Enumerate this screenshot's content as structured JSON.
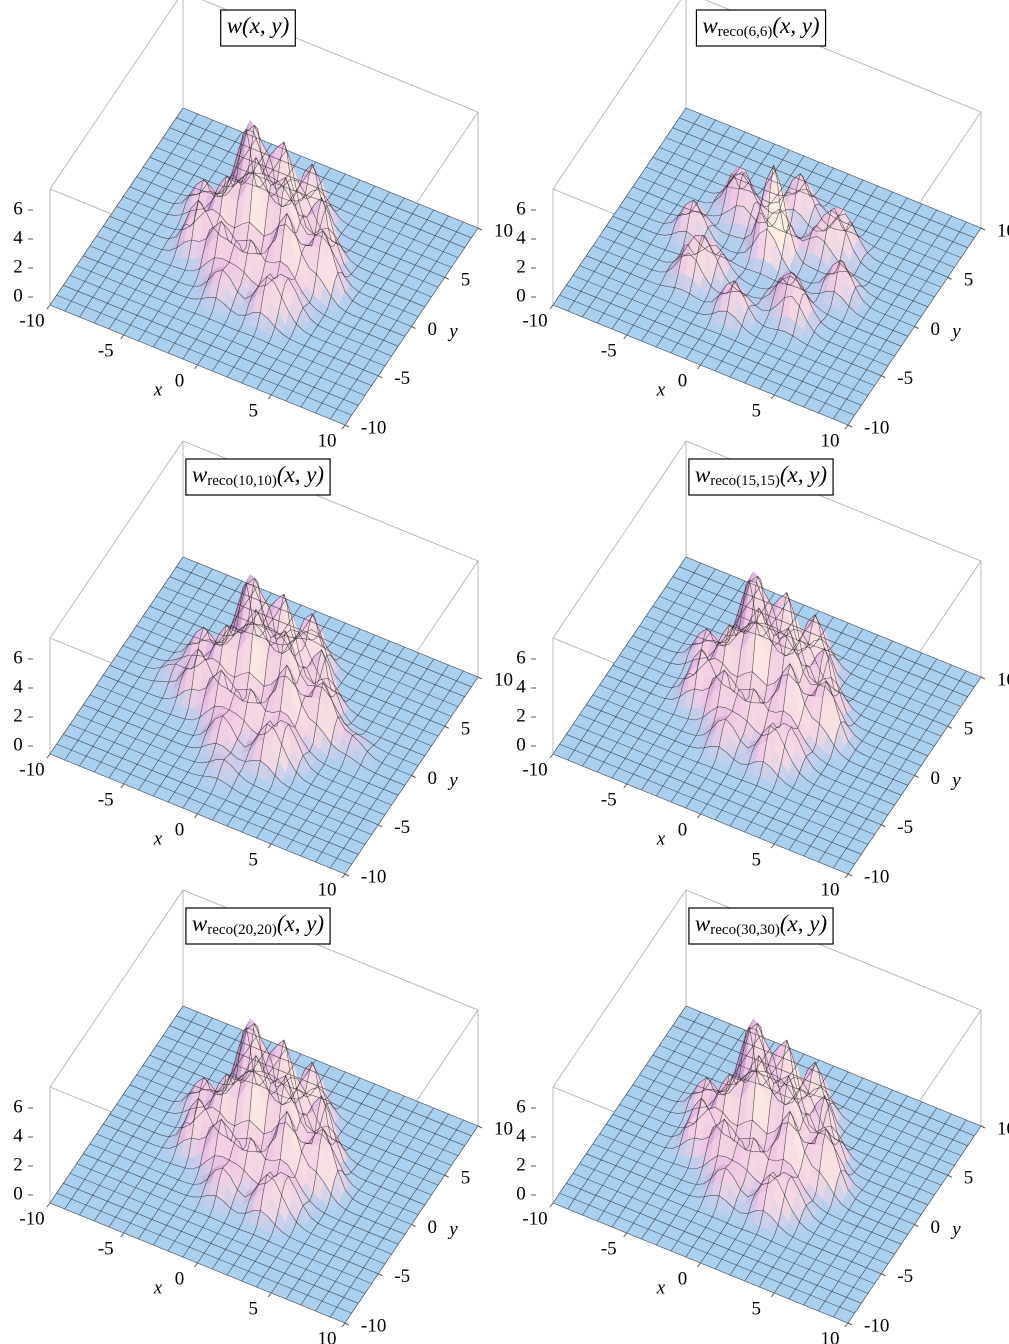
{
  "chart_data": [
    {
      "type": "surface",
      "title": {
        "main": "w",
        "sub": "",
        "args": "(x, y)"
      },
      "xlabel": "x",
      "ylabel": "y",
      "xlim": [
        -10,
        10
      ],
      "ylim": [
        -10,
        10
      ],
      "zlim": [
        0,
        8
      ],
      "xticks": [
        -10,
        -5,
        0,
        5,
        10
      ],
      "yticks": [
        -10,
        -5,
        0,
        5,
        10
      ],
      "zticks": [
        0,
        2,
        4,
        6
      ],
      "peaks": {
        "x": [
          -2,
          0,
          -1,
          1,
          2,
          -3,
          -4,
          -2,
          0,
          2,
          -1,
          3,
          4,
          -3,
          1,
          -5,
          3
        ],
        "y": [
          3,
          3,
          1,
          1,
          -1,
          1,
          -1,
          -2,
          -2,
          -4,
          -4,
          2,
          0,
          4,
          5,
          2,
          -3
        ],
        "z": [
          5.8,
          6.2,
          6,
          5.5,
          5,
          4,
          3.5,
          3.5,
          3,
          2.5,
          2,
          4.5,
          4,
          4.5,
          4,
          2.5,
          2
        ]
      }
    },
    {
      "type": "surface",
      "title": {
        "main": "w",
        "sub": "reco(6,6)",
        "args": "(x, y)"
      },
      "xlabel": "x",
      "ylabel": "y",
      "xlim": [
        -10,
        10
      ],
      "ylim": [
        -10,
        10
      ],
      "zlim": [
        0,
        8
      ],
      "xticks": [
        -10,
        -5,
        0,
        5,
        10
      ],
      "yticks": [
        -10,
        -5,
        0,
        5,
        10
      ],
      "zticks": [
        0,
        2,
        4,
        6
      ],
      "peaks": {
        "x": [
          0,
          5,
          3.5,
          0,
          -3.5,
          -5,
          -3.5,
          0,
          3.5,
          2.5,
          -2.5,
          -2.5,
          2.5
        ],
        "y": [
          1,
          0,
          3.5,
          5,
          3.5,
          0,
          -3.5,
          -5,
          -3.5,
          2.5,
          2.5,
          -2.5,
          -2.5
        ],
        "z": [
          6.3,
          2.5,
          2.8,
          3,
          2.8,
          2.5,
          2.6,
          2.4,
          2.5,
          2,
          2,
          2,
          2
        ]
      }
    },
    {
      "type": "surface",
      "title": {
        "main": "w",
        "sub": "reco(10,10)",
        "args": "(x, y)"
      },
      "xlabel": "x",
      "ylabel": "y",
      "xlim": [
        -10,
        10
      ],
      "ylim": [
        -10,
        10
      ],
      "zlim": [
        0,
        8
      ],
      "xticks": [
        -10,
        -5,
        0,
        5,
        10
      ],
      "yticks": [
        -10,
        -5,
        0,
        5,
        10
      ],
      "zticks": [
        0,
        2,
        4,
        6
      ],
      "peaks": {
        "x": [
          -2,
          0,
          -1,
          1,
          2,
          -3,
          -4,
          -2,
          0,
          2,
          -1,
          3,
          4,
          -3,
          1,
          -5,
          3,
          6,
          -6,
          0,
          0
        ],
        "y": [
          3,
          3,
          1,
          1,
          -1,
          1,
          -1,
          -2,
          -2,
          -4,
          -4,
          2,
          0,
          4,
          5,
          2,
          -3,
          0,
          0,
          6,
          -6
        ],
        "z": [
          5.6,
          6,
          5.8,
          5.2,
          4.8,
          4,
          3.5,
          3.5,
          3,
          2.6,
          2.2,
          4.3,
          3.8,
          4.2,
          3.8,
          2.6,
          2.2,
          1,
          1,
          1,
          1
        ]
      }
    },
    {
      "type": "surface",
      "title": {
        "main": "w",
        "sub": "reco(15,15)",
        "args": "(x, y)"
      },
      "xlabel": "x",
      "ylabel": "y",
      "xlim": [
        -10,
        10
      ],
      "ylim": [
        -10,
        10
      ],
      "zlim": [
        0,
        8
      ],
      "xticks": [
        -10,
        -5,
        0,
        5,
        10
      ],
      "yticks": [
        -10,
        -5,
        0,
        5,
        10
      ],
      "zticks": [
        0,
        2,
        4,
        6
      ],
      "peaks": {
        "x": [
          -2,
          0,
          -1,
          1,
          2,
          -3,
          -4,
          -2,
          0,
          2,
          -1,
          3,
          4,
          -3,
          1,
          -5,
          3
        ],
        "y": [
          3,
          3,
          1,
          1,
          -1,
          1,
          -1,
          -2,
          -2,
          -4,
          -4,
          2,
          0,
          4,
          5,
          2,
          -3
        ],
        "z": [
          5.7,
          6.1,
          5.9,
          5.4,
          4.9,
          4,
          3.5,
          3.5,
          3,
          2.5,
          2,
          4.4,
          3.9,
          4.4,
          3.9,
          2.5,
          2
        ]
      }
    },
    {
      "type": "surface",
      "title": {
        "main": "w",
        "sub": "reco(20,20)",
        "args": "(x, y)"
      },
      "xlabel": "x",
      "ylabel": "y",
      "xlim": [
        -10,
        10
      ],
      "ylim": [
        -10,
        10
      ],
      "zlim": [
        0,
        8
      ],
      "xticks": [
        -10,
        -5,
        0,
        5,
        10
      ],
      "yticks": [
        -10,
        -5,
        0,
        5,
        10
      ],
      "zticks": [
        0,
        2,
        4,
        6
      ],
      "peaks": {
        "x": [
          -2,
          0,
          -1,
          1,
          2,
          -3,
          -4,
          -2,
          0,
          2,
          -1,
          3,
          4,
          -3,
          1,
          -5,
          3
        ],
        "y": [
          3,
          3,
          1,
          1,
          -1,
          1,
          -1,
          -2,
          -2,
          -4,
          -4,
          2,
          0,
          4,
          5,
          2,
          -3
        ],
        "z": [
          5.8,
          6.2,
          6,
          5.5,
          5,
          4,
          3.5,
          3.5,
          3,
          2.5,
          2,
          4.5,
          4,
          4.5,
          4,
          2.5,
          2
        ]
      }
    },
    {
      "type": "surface",
      "title": {
        "main": "w",
        "sub": "reco(30,30)",
        "args": "(x, y)"
      },
      "xlabel": "x",
      "ylabel": "y",
      "xlim": [
        -10,
        10
      ],
      "ylim": [
        -10,
        10
      ],
      "zlim": [
        0,
        8
      ],
      "xticks": [
        -10,
        -5,
        0,
        5,
        10
      ],
      "yticks": [
        -10,
        -5,
        0,
        5,
        10
      ],
      "zticks": [
        0,
        2,
        4,
        6
      ],
      "peaks": {
        "x": [
          -2,
          0,
          -1,
          1,
          2,
          -3,
          -4,
          -2,
          0,
          2,
          -1,
          3,
          4,
          -3,
          1,
          -5,
          3
        ],
        "y": [
          3,
          3,
          1,
          1,
          -1,
          1,
          -1,
          -2,
          -2,
          -4,
          -4,
          2,
          0,
          4,
          5,
          2,
          -3
        ],
        "z": [
          5.8,
          6.2,
          6,
          5.5,
          5,
          4,
          3.5,
          3.5,
          3,
          2.5,
          2,
          4.5,
          4,
          4.5,
          4,
          2.5,
          2
        ]
      }
    }
  ]
}
